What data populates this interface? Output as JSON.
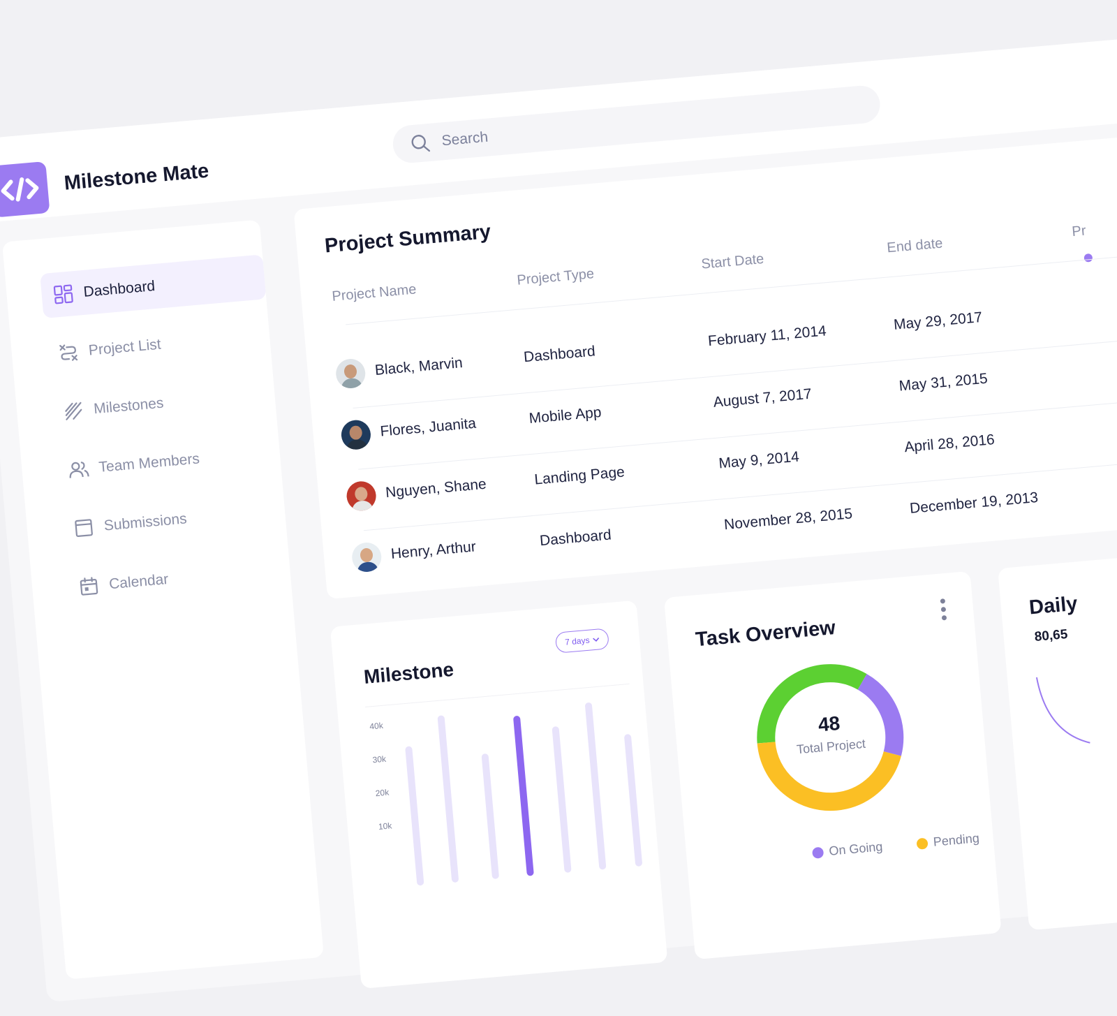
{
  "app": {
    "title": "Milestone Mate"
  },
  "search": {
    "placeholder": "Search"
  },
  "sidebar": {
    "items": [
      {
        "label": "Dashboard",
        "icon": "dashboard-icon",
        "active": true
      },
      {
        "label": "Project List",
        "icon": "route-icon",
        "active": false
      },
      {
        "label": "Milestones",
        "icon": "milestones-icon",
        "active": false
      },
      {
        "label": "Team Members",
        "icon": "team-icon",
        "active": false
      },
      {
        "label": "Submissions",
        "icon": "submission-icon",
        "active": false
      },
      {
        "label": "Calendar",
        "icon": "calendar-icon",
        "active": false
      }
    ]
  },
  "project_summary": {
    "title": "Project Summary",
    "columns": [
      "Project  Name",
      "Project Type",
      "Start Date",
      "End date",
      "Pr"
    ],
    "rows": [
      {
        "name": "Black, Marvin",
        "type": "Dashboard",
        "start": "February 11, 2014",
        "end": "May 29, 2017"
      },
      {
        "name": "Flores, Juanita",
        "type": "Mobile App",
        "start": "August 7, 2017",
        "end": "May 31, 2015"
      },
      {
        "name": "Nguyen, Shane",
        "type": "Landing Page",
        "start": "May 9, 2014",
        "end": "April 28, 2016"
      },
      {
        "name": "Henry, Arthur",
        "type": "Dashboard",
        "start": "November 28, 2015",
        "end": "December 19, 2013"
      }
    ]
  },
  "milestone": {
    "title": "Milestone",
    "range_label": "7 days",
    "y_ticks": [
      "40k",
      "30k",
      "20k",
      "10k"
    ],
    "highlight_color": "#8d67f0",
    "base_color": "#e8e3fb"
  },
  "task_overview": {
    "title": "Task Overview",
    "total_value": "48",
    "total_label": "Total Project",
    "legend": [
      {
        "label": "On Going",
        "color": "#9b7bf1"
      },
      {
        "label": "Pending",
        "color": "#fbbf24"
      }
    ],
    "segment_colors": {
      "completed": "#5cd032",
      "ongoing": "#9b7bf1",
      "pending": "#fbbf24"
    }
  },
  "daily": {
    "title": "Daily",
    "value": "80,65"
  },
  "colors": {
    "accent": "#9b7bf1",
    "text": "#15182e",
    "muted": "#8c90a7"
  }
}
